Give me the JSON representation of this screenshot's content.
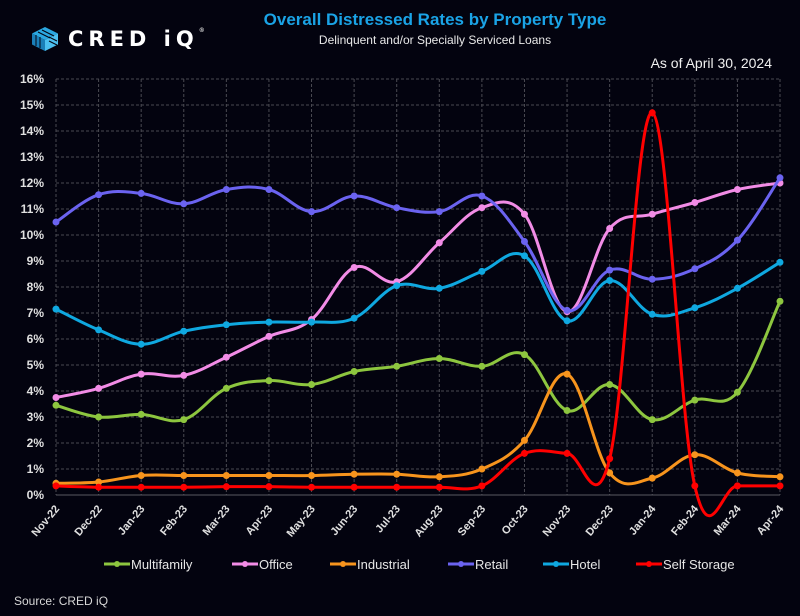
{
  "header": {
    "brand": "CRED iQ",
    "brand_mark": "®",
    "title": "Overall Distressed Rates by Property Type",
    "subtitle": "Delinquent and/or Specially Serviced Loans",
    "as_of": "As of  April 30, 2024"
  },
  "footer": {
    "source": "Source:  CRED iQ"
  },
  "chart_data": {
    "type": "line",
    "title": "Overall Distressed Rates by Property Type",
    "subtitle": "Delinquent and/or Specially Serviced Loans",
    "xlabel": "",
    "ylabel": "",
    "ylim": [
      0,
      16
    ],
    "y_ticks": [
      "0%",
      "1%",
      "2%",
      "3%",
      "4%",
      "5%",
      "6%",
      "7%",
      "8%",
      "9%",
      "10%",
      "11%",
      "12%",
      "13%",
      "14%",
      "15%",
      "16%"
    ],
    "grid": true,
    "legend_position": "bottom",
    "x": [
      "Nov-22",
      "Dec-22",
      "Jan-23",
      "Feb-23",
      "Mar-23",
      "Apr-23",
      "May-23",
      "Jun-23",
      "Jul-23",
      "Aug-23",
      "Sep-23",
      "Oct-23",
      "Nov-23",
      "Dec-23",
      "Jan-24",
      "Feb-24",
      "Mar-24",
      "Apr-24"
    ],
    "series": [
      {
        "name": "Multifamily",
        "color": "#8dc63f",
        "values": [
          3.45,
          3.0,
          3.1,
          2.9,
          4.1,
          4.4,
          4.25,
          4.75,
          4.95,
          5.25,
          4.95,
          5.4,
          3.25,
          4.25,
          2.9,
          3.65,
          3.95,
          7.45
        ]
      },
      {
        "name": "Office",
        "color": "#f28ce6",
        "values": [
          3.75,
          4.1,
          4.65,
          4.6,
          5.3,
          6.1,
          6.75,
          8.75,
          8.2,
          9.7,
          11.05,
          10.8,
          7.05,
          10.25,
          10.8,
          11.25,
          11.75,
          12.0
        ]
      },
      {
        "name": "Industrial",
        "color": "#f7941d",
        "values": [
          0.45,
          0.5,
          0.75,
          0.75,
          0.75,
          0.75,
          0.75,
          0.8,
          0.8,
          0.7,
          1.0,
          2.1,
          4.65,
          0.85,
          0.65,
          1.55,
          0.85,
          0.7
        ]
      },
      {
        "name": "Retail",
        "color": "#6b63f0",
        "values": [
          10.5,
          11.55,
          11.6,
          11.2,
          11.75,
          11.75,
          10.9,
          11.5,
          11.05,
          10.9,
          11.5,
          9.75,
          7.1,
          8.65,
          8.3,
          8.7,
          9.8,
          12.2
        ]
      },
      {
        "name": "Hotel",
        "color": "#0fa8e0",
        "values": [
          7.15,
          6.35,
          5.8,
          6.3,
          6.55,
          6.65,
          6.65,
          6.8,
          8.05,
          7.95,
          8.6,
          9.2,
          6.7,
          8.25,
          6.95,
          7.2,
          7.95,
          8.95
        ]
      },
      {
        "name": "Self Storage",
        "color": "#ff0000",
        "values": [
          0.35,
          0.3,
          0.3,
          0.3,
          0.32,
          0.32,
          0.3,
          0.3,
          0.3,
          0.3,
          0.35,
          1.6,
          1.6,
          1.4,
          14.7,
          0.35,
          0.35,
          0.35
        ]
      }
    ]
  }
}
